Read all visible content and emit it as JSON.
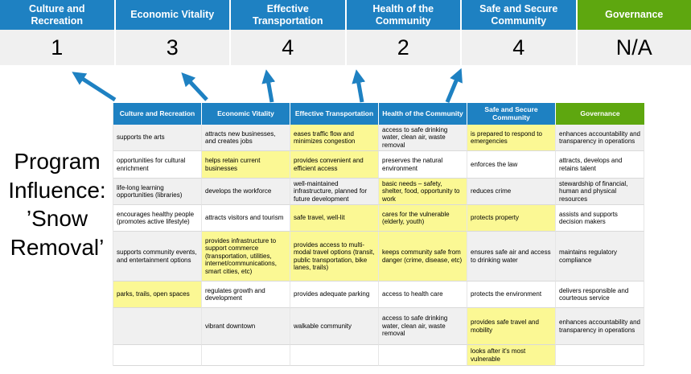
{
  "page": {
    "title_lines": [
      "Program",
      "Influence:",
      "’Snow",
      "Removal’"
    ]
  },
  "colors": {
    "header_blue": "#1E81C2",
    "header_green": "#5EA70F",
    "highlight_yellow": "#FBF894",
    "score_row_gray": "#F0F0F0"
  },
  "arrows": [
    {
      "name": "arrow-culture-and-recreation",
      "direction": "up-left"
    },
    {
      "name": "arrow-economic-vitality",
      "direction": "up-left"
    },
    {
      "name": "arrow-effective-transportation",
      "direction": "up"
    },
    {
      "name": "arrow-health-of-the-community",
      "direction": "up"
    },
    {
      "name": "arrow-safe-and-secure-community",
      "direction": "up-right"
    }
  ],
  "scoreboard": {
    "columns": [
      {
        "label": "Culture and Recreation",
        "score": "1",
        "theme": "blue"
      },
      {
        "label": "Economic Vitality",
        "score": "3",
        "theme": "blue"
      },
      {
        "label": "Effective Transportation",
        "score": "4",
        "theme": "blue"
      },
      {
        "label": "Health of the Community",
        "score": "2",
        "theme": "blue"
      },
      {
        "label": "Safe and Secure Community",
        "score": "4",
        "theme": "blue"
      },
      {
        "label": "Governance",
        "score": "N/A",
        "theme": "green"
      }
    ]
  },
  "matrix": {
    "headers": [
      {
        "label": "Culture and Recreation",
        "theme": "blue"
      },
      {
        "label": "Economic Vitality",
        "theme": "blue"
      },
      {
        "label": "Effective Transportation",
        "theme": "blue"
      },
      {
        "label": "Health of the Community",
        "theme": "blue"
      },
      {
        "label": "Safe and Secure Community",
        "theme": "blue"
      },
      {
        "label": "Governance",
        "theme": "green"
      }
    ],
    "rows": [
      {
        "cells": [
          {
            "text": "supports the arts",
            "highlight": false
          },
          {
            "text": "attracts new businesses, and creates jobs",
            "highlight": false
          },
          {
            "text": "eases traffic flow and minimizes congestion",
            "highlight": true
          },
          {
            "text": "access to safe drinking water, clean air, waste removal",
            "highlight": false
          },
          {
            "text": "is prepared to respond to emergencies",
            "highlight": true
          },
          {
            "text": "enhances accountability and transparency in operations",
            "highlight": false
          }
        ]
      },
      {
        "cells": [
          {
            "text": "opportunities for cultural enrichment",
            "highlight": false
          },
          {
            "text": "helps retain current businesses",
            "highlight": true
          },
          {
            "text": "provides convenient and efficient access",
            "highlight": true
          },
          {
            "text": "preserves the natural environment",
            "highlight": false
          },
          {
            "text": "enforces the law",
            "highlight": false
          },
          {
            "text": "attracts, develops and retains talent",
            "highlight": false
          }
        ]
      },
      {
        "cells": [
          {
            "text": "life-long learning opportunities (libraries)",
            "highlight": false
          },
          {
            "text": "develops the workforce",
            "highlight": false
          },
          {
            "text": "well-maintained infrastructure, planned for future development",
            "highlight": false
          },
          {
            "text": "basic needs – safety, shelter, food, opportunity to work",
            "highlight": true
          },
          {
            "text": "reduces crime",
            "highlight": false
          },
          {
            "text": "stewardship of financial, human and physical resources",
            "highlight": false
          }
        ]
      },
      {
        "cells": [
          {
            "text": "encourages healthy people (promotes active lifestyle)",
            "highlight": false
          },
          {
            "text": "attracts visitors and tourism",
            "highlight": false
          },
          {
            "text": "safe travel, well-lit",
            "highlight": true
          },
          {
            "text": "cares for the vulnerable (elderly, youth)",
            "highlight": true
          },
          {
            "text": "protects property",
            "highlight": true
          },
          {
            "text": "assists and supports decision makers",
            "highlight": false
          }
        ]
      },
      {
        "cells": [
          {
            "text": "supports community events, and entertainment options",
            "highlight": false
          },
          {
            "text": "provides infrastructure to support commerce (transportation, utilities, internet/communications, smart cities, etc)",
            "highlight": true
          },
          {
            "text": "provides access to multi-modal travel options (transit, public transportation, bike lanes, trails)",
            "highlight": true
          },
          {
            "text": "keeps community safe from danger (crime, disease, etc)",
            "highlight": true
          },
          {
            "text": "ensures safe air and access to drinking water",
            "highlight": false
          },
          {
            "text": "maintains regulatory compliance",
            "highlight": false
          }
        ]
      },
      {
        "cells": [
          {
            "text": "parks, trails, open spaces",
            "highlight": true
          },
          {
            "text": "regulates growth and development",
            "highlight": false
          },
          {
            "text": "provides adequate parking",
            "highlight": false
          },
          {
            "text": "access to health care",
            "highlight": false
          },
          {
            "text": "protects the environment",
            "highlight": false
          },
          {
            "text": "delivers responsible and courteous service",
            "highlight": false
          }
        ]
      },
      {
        "cells": [
          {
            "text": "",
            "highlight": false
          },
          {
            "text": "vibrant downtown",
            "highlight": false
          },
          {
            "text": "walkable community",
            "highlight": false
          },
          {
            "text": "access to safe drinking water, clean air, waste removal",
            "highlight": false
          },
          {
            "text": "provides safe travel and mobility",
            "highlight": true
          },
          {
            "text": "enhances accountability and transparency in operations",
            "highlight": false
          }
        ]
      },
      {
        "cells": [
          {
            "text": "",
            "highlight": false
          },
          {
            "text": "",
            "highlight": false
          },
          {
            "text": "",
            "highlight": false
          },
          {
            "text": "",
            "highlight": false
          },
          {
            "text": "looks after it's most vulnerable",
            "highlight": true
          },
          {
            "text": "",
            "highlight": false
          }
        ]
      }
    ]
  }
}
